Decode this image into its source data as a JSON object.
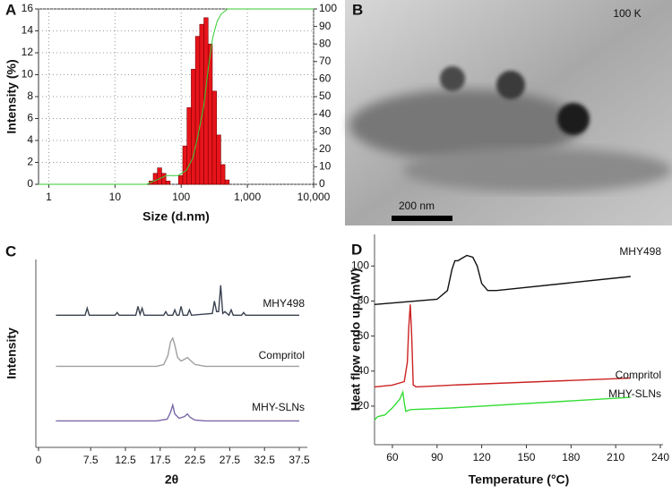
{
  "chart_data": [
    {
      "type": "histogram",
      "panel": "A",
      "xlabel": "Size (d.nm)",
      "ylabel": "Intensity (%)",
      "xscale": "log",
      "grid": true,
      "xlim": [
        0.7,
        10000
      ],
      "xticks": [
        1,
        10,
        100,
        {
          "value": 1000,
          "label": "1,000"
        },
        {
          "value": 10000,
          "label": "10,000"
        }
      ],
      "ylim": [
        0,
        16
      ],
      "yticks": [
        0,
        2,
        4,
        6,
        8,
        10,
        12,
        14,
        16
      ],
      "y2lim": [
        0,
        100
      ],
      "y2ticks": [
        0,
        10,
        20,
        30,
        40,
        50,
        60,
        70,
        80,
        90,
        100
      ],
      "color": "#e8141b",
      "bins": [
        32.7,
        37.8,
        43.8,
        50.7,
        58.8,
        68.1,
        78.8,
        91.3,
        105.7,
        122.4,
        141.8,
        164.2,
        190.1,
        220.2,
        255.0,
        295.3,
        342.0,
        396.1,
        458.7,
        531.2
      ],
      "values": [
        0.3,
        1.0,
        1.5,
        1.0,
        0.3,
        0,
        0,
        0.8,
        3.5,
        7.0,
        10.5,
        13.5,
        14.6,
        15.2,
        12.8,
        8.5,
        4.5,
        1.8,
        0.4
      ],
      "series": [
        {
          "color": "#33cc33",
          "axis": "y2",
          "x": [
            0.7,
            30,
            60,
            90,
            120,
            150,
            180,
            220,
            260,
            300,
            350,
            400,
            500,
            10000
          ],
          "values": [
            0,
            0,
            5,
            5,
            8,
            15,
            28,
            45,
            68,
            84,
            93,
            97,
            100,
            100
          ]
        }
      ]
    },
    {
      "type": "line",
      "panel": "C",
      "xlabel": "2θ",
      "ylabel": "Intensity",
      "xlim": [
        0,
        37.5
      ],
      "xticks": [
        0,
        7.5,
        12.5,
        17.5,
        22.5,
        27.5,
        32.5,
        37.5
      ],
      "ylim": [
        0,
        100
      ],
      "series": [
        {
          "name": "MHY498",
          "color": "#3a4250",
          "x": [
            2.5,
            6.7,
            7.0,
            7.3,
            11,
            11.3,
            11.6,
            14.0,
            14.3,
            14.6,
            14.9,
            15.2,
            18,
            18.3,
            18.6,
            19.3,
            19.6,
            19.9,
            20.2,
            20.5,
            20.8,
            21.4,
            21.7,
            22.0,
            25.0,
            25.3,
            25.6,
            25.9,
            26.2,
            26.5,
            26.8,
            27.4,
            27.7,
            28.0,
            29.2,
            29.5,
            29.8,
            37.5
          ],
          "values": [
            75,
            75,
            79,
            75,
            75,
            76.5,
            75,
            75,
            80,
            75.5,
            79,
            75,
            75,
            77,
            75,
            75,
            78,
            75,
            75,
            80,
            75,
            75,
            78,
            75,
            76,
            83,
            77,
            77,
            92,
            76,
            77,
            75,
            78,
            75,
            75,
            76.5,
            75,
            75
          ]
        },
        {
          "name": "Compritol",
          "color": "#a0a0a0",
          "x": [
            2.5,
            17,
            18,
            18.6,
            19.0,
            19.3,
            19.6,
            20.0,
            20.5,
            21.0,
            21.4,
            21.8,
            22.5,
            24,
            37.5
          ],
          "values": [
            46,
            46,
            47,
            52,
            60,
            62,
            58,
            51,
            49,
            50,
            51,
            49.5,
            47,
            46,
            46
          ]
        },
        {
          "name": "MHY-SLNs",
          "color": "#7a68a8",
          "x": [
            2.5,
            17,
            18.5,
            19.0,
            19.3,
            19.6,
            20.2,
            21.0,
            21.4,
            21.8,
            22.5,
            24,
            37.5
          ],
          "values": [
            15,
            15,
            16,
            20,
            24,
            19,
            16.5,
            17.5,
            19,
            17,
            15.5,
            15,
            15
          ]
        }
      ]
    },
    {
      "type": "line",
      "panel": "D",
      "xlabel": "Temperature (°C)",
      "ylabel": "Heat flow endo up (mW)",
      "xlim": [
        48,
        240
      ],
      "xticks": [
        60,
        90,
        120,
        150,
        180,
        210,
        240
      ],
      "ylim": [
        -2,
        118
      ],
      "yticks": [
        20,
        40,
        60,
        80,
        100
      ],
      "series": [
        {
          "name": "MHY498",
          "color": "#111111",
          "x": [
            48,
            90,
            97,
            100,
            102,
            104,
            106,
            110,
            114,
            117,
            120,
            124,
            130,
            220
          ],
          "values": [
            78,
            81,
            86,
            98,
            103,
            103,
            104,
            106,
            105,
            100,
            90,
            86,
            86,
            94
          ]
        },
        {
          "name": "Compritol",
          "color": "#cc2222",
          "x": [
            48,
            60,
            68,
            70,
            71,
            72,
            73,
            74,
            76,
            100,
            220
          ],
          "values": [
            31,
            32,
            34,
            45,
            65,
            78,
            60,
            32,
            31,
            32,
            36
          ]
        },
        {
          "name": "MHY-SLNs",
          "color": "#33dd33",
          "x": [
            48,
            50,
            55,
            60,
            65,
            67,
            68,
            69,
            72,
            100,
            220
          ],
          "values": [
            12,
            14,
            15,
            19,
            24,
            28,
            22,
            17,
            18,
            19,
            25
          ]
        }
      ]
    }
  ],
  "image": {
    "panel": "B",
    "magnification": "100 K",
    "scale_bar": "200 nm"
  }
}
